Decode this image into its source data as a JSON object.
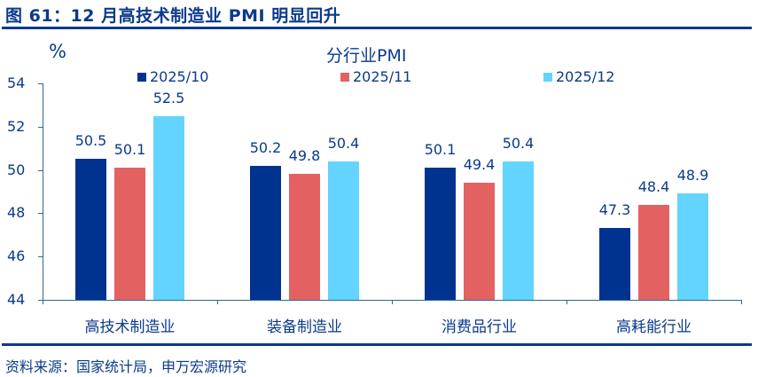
{
  "header": {
    "title": "图 61：12 月高技术制造业 PMI 明显回升"
  },
  "footer": {
    "source": "资料来源：国家统计局，申万宏源研究"
  },
  "colors": {
    "series_2025_10": "#00338f",
    "series_2025_11": "#e46162",
    "series_2025_12": "#63d4ff",
    "text": "#0a3a8c",
    "axis": "#2a6b8a"
  },
  "chart_data": {
    "type": "bar",
    "title": "分行业PMI",
    "ylabel": "%",
    "xlabel": "",
    "ylim": [
      44,
      54
    ],
    "yticks": [
      54,
      52,
      50,
      48,
      46,
      44
    ],
    "grid": false,
    "legend_position": "top",
    "categories": [
      "高技术制造业",
      "装备制造业",
      "消费品行业",
      "高耗能行业"
    ],
    "series": [
      {
        "name": "2025/10",
        "color": "#00338f",
        "values": [
          50.5,
          50.2,
          50.1,
          47.3
        ]
      },
      {
        "name": "2025/11",
        "color": "#e46162",
        "values": [
          50.1,
          49.8,
          49.4,
          48.4
        ]
      },
      {
        "name": "2025/12",
        "color": "#63d4ff",
        "values": [
          52.5,
          50.4,
          50.4,
          48.9
        ]
      }
    ],
    "labels": {
      "series": [
        [
          "50.5",
          "50.2",
          "50.1",
          "47.3"
        ],
        [
          "50.1",
          "49.8",
          "49.4",
          "48.4"
        ],
        [
          "52.5",
          "50.4",
          "50.4",
          "48.9"
        ]
      ]
    }
  }
}
